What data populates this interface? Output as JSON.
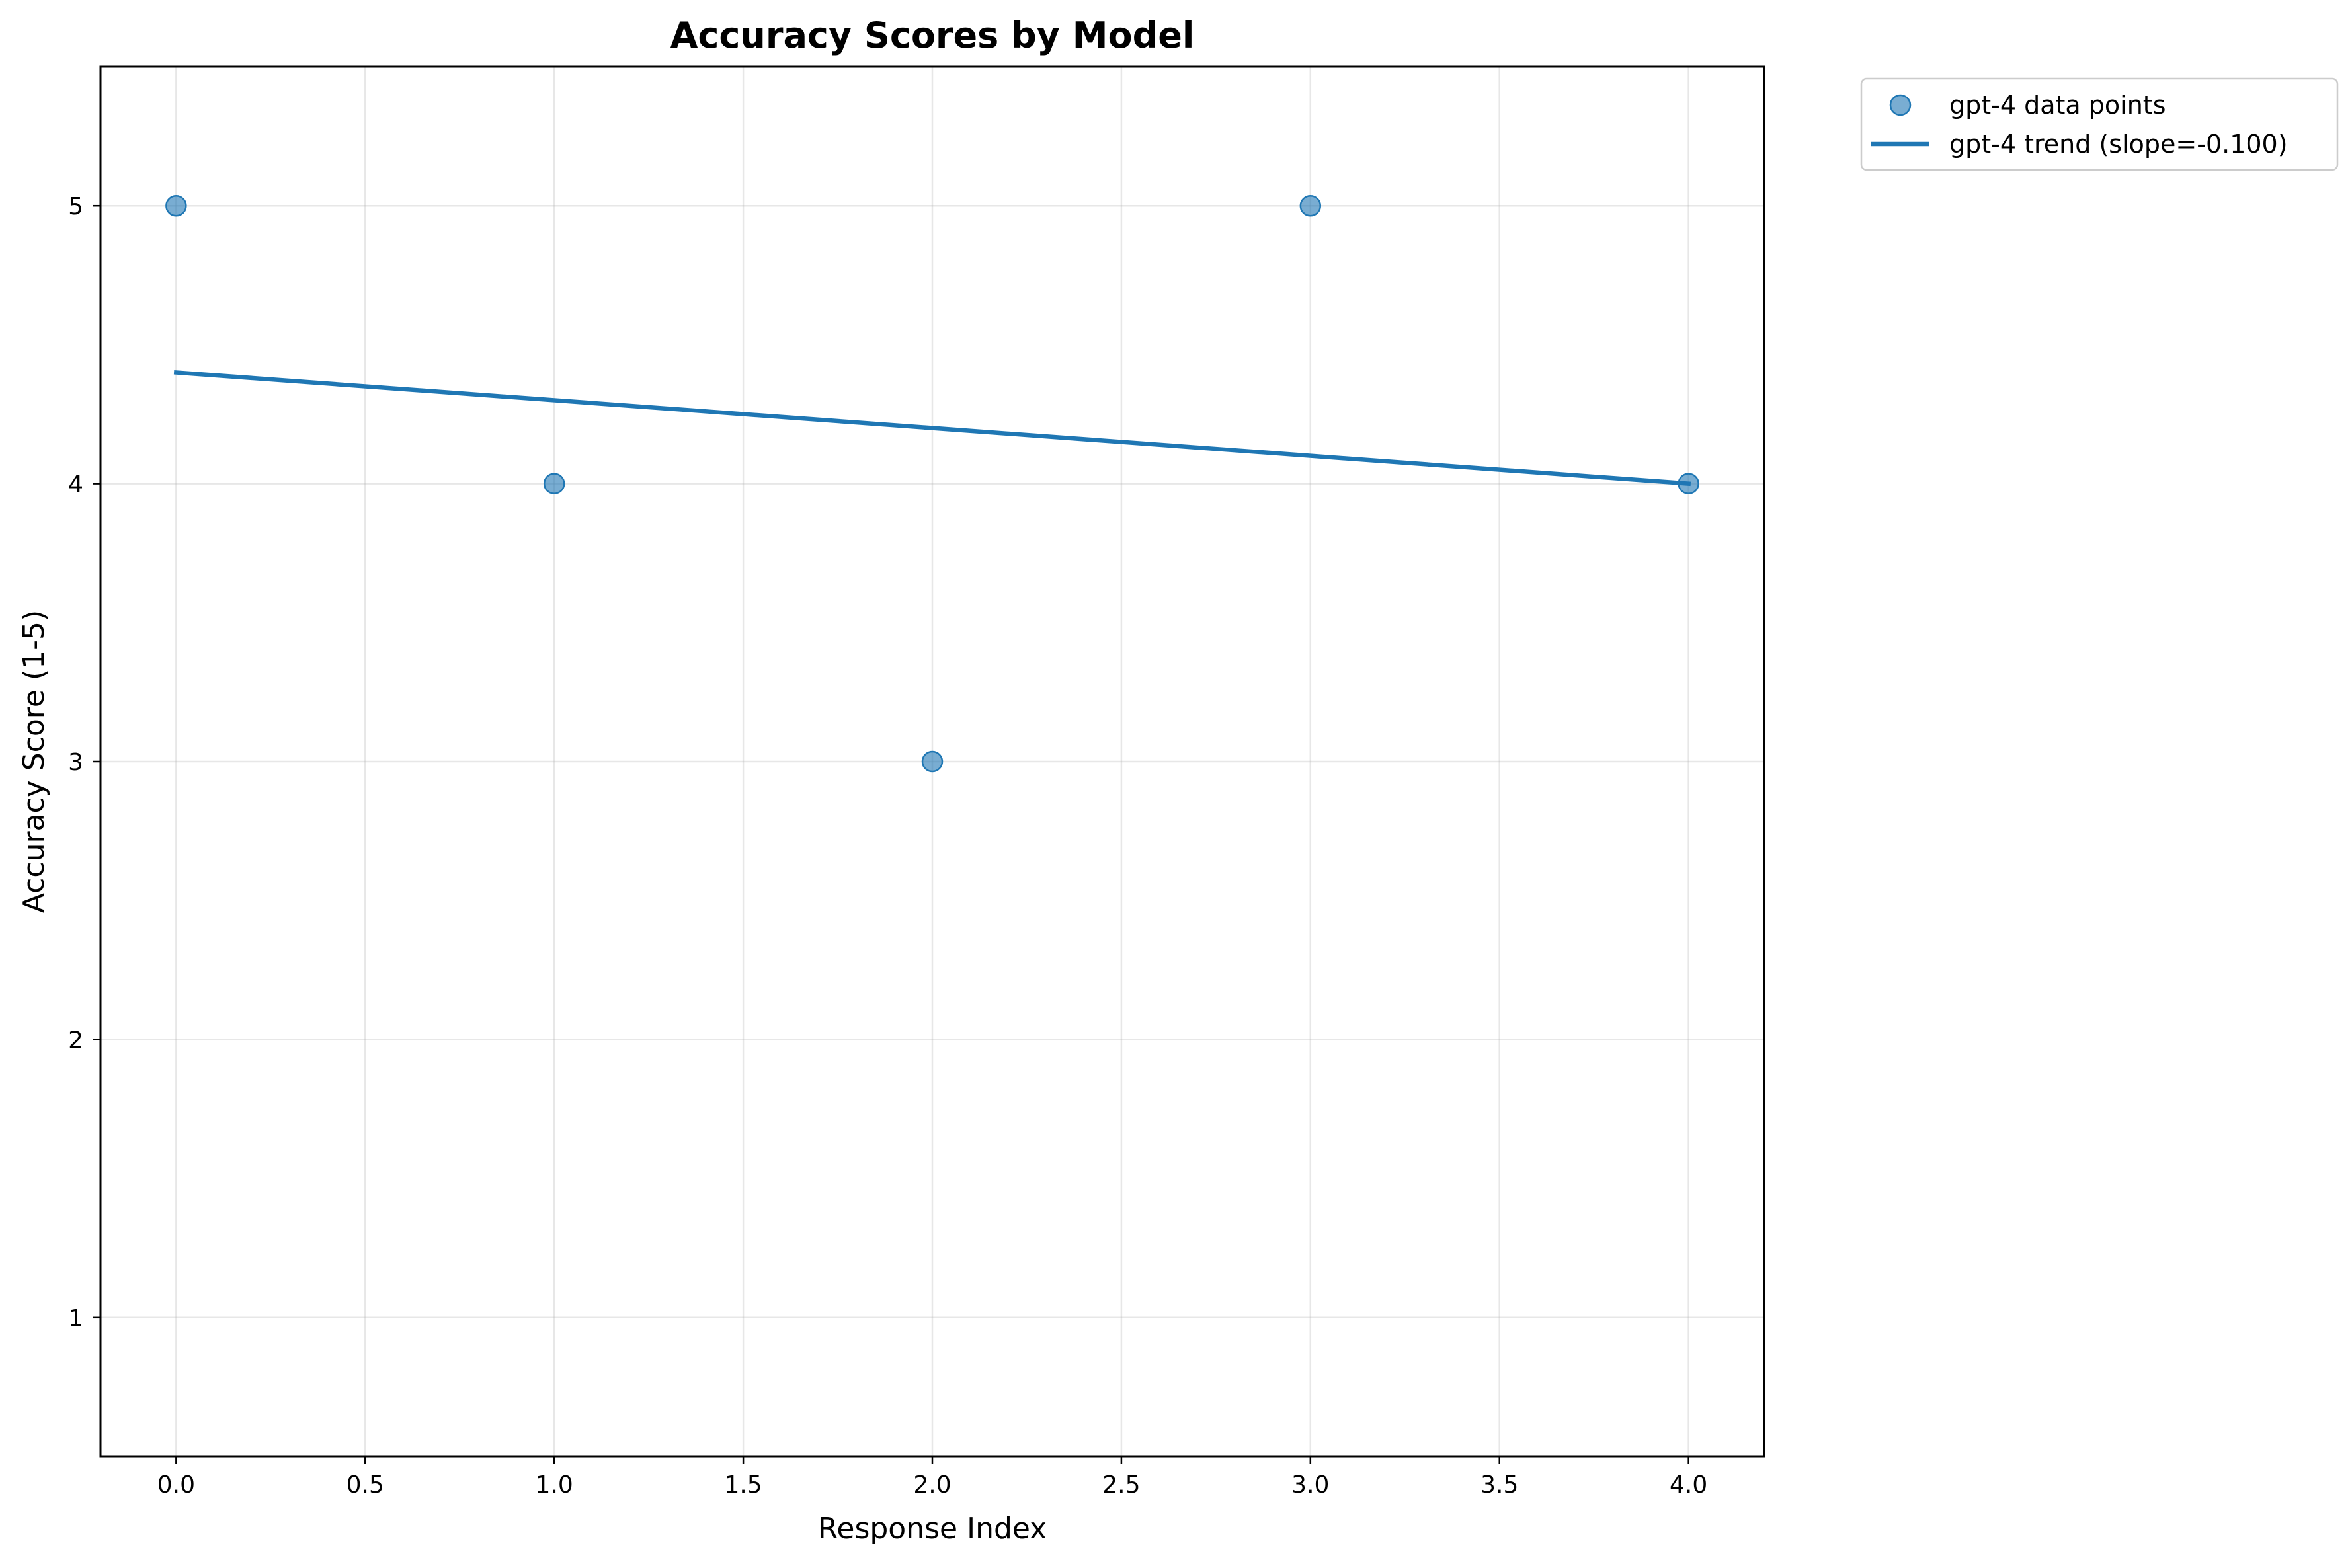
{
  "chart_data": {
    "type": "scatter",
    "title": "Accuracy Scores by Model",
    "xlabel": "Response Index",
    "ylabel": "Accuracy Score (1-5)",
    "xlim": [
      -0.2,
      4.2
    ],
    "ylim": [
      0.5,
      5.5
    ],
    "x_ticks": [
      0.0,
      0.5,
      1.0,
      1.5,
      2.0,
      2.5,
      3.0,
      3.5,
      4.0
    ],
    "x_tick_labels": [
      "0.0",
      "0.5",
      "1.0",
      "1.5",
      "2.0",
      "2.5",
      "3.0",
      "3.5",
      "4.0"
    ],
    "y_ticks": [
      1,
      2,
      3,
      4,
      5
    ],
    "y_tick_labels": [
      "1",
      "2",
      "3",
      "4",
      "5"
    ],
    "grid": true,
    "legend_position": "outside top-right",
    "series": [
      {
        "name": "gpt-4 data points",
        "type": "scatter",
        "color": "#1f77b4",
        "x": [
          0,
          1,
          2,
          3,
          4
        ],
        "y": [
          5,
          4,
          3,
          5,
          4
        ]
      },
      {
        "name": "gpt-4 trend (slope=-0.100)",
        "type": "line",
        "color": "#1f77b4",
        "x": [
          0,
          4
        ],
        "y": [
          4.4,
          4.0
        ]
      }
    ]
  }
}
